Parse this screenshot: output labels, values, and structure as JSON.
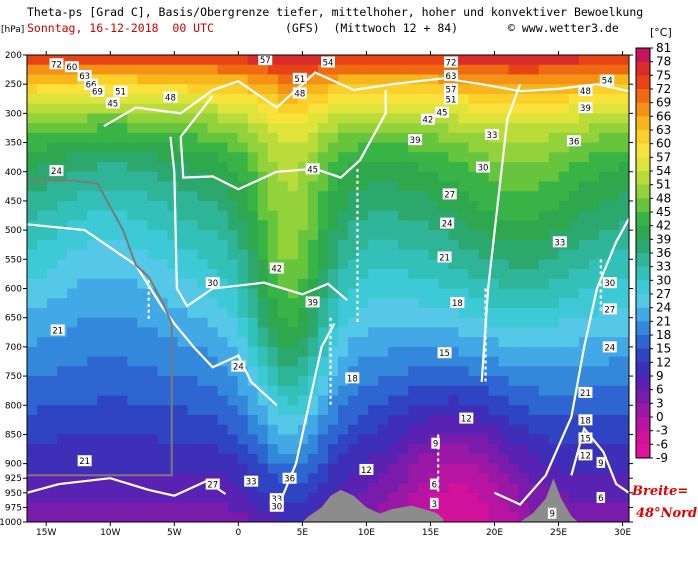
{
  "header": {
    "line1": "Theta-ps [Grad C], Basis/Obergrenze tiefer, mittelhoher, hoher und konvektiver Bewoelkung",
    "date": "Sonntag, 16-12-2018  00 UTC",
    "model": "(GFS)  (Mittwoch 12 + 84)",
    "site": "© www.wetter3.de",
    "unit_left": "[hPa]",
    "unit_right": "[°C]"
  },
  "note": {
    "line1": "Breite=",
    "line2": "48°Nord"
  },
  "colors": {
    "terrain": "#8c8c8c",
    "contour": "#000000",
    "cloud_outline": "#ffffff",
    "grey_line": "#7a7a7a"
  },
  "chart_data": {
    "type": "heatmap",
    "title": "Theta-ps [Grad C], Basis/Obergrenze tiefer, mittelhoher, hoher und konvektiver Bewoelkung",
    "x_ticks": [
      "15W",
      "10W",
      "5W",
      "0",
      "5E",
      "10E",
      "15E",
      "20E",
      "25E",
      "30E"
    ],
    "x_values": [
      -15,
      -10,
      -5,
      0,
      5,
      10,
      15,
      20,
      25,
      30
    ],
    "xlim": [
      -16.5,
      30.5
    ],
    "y_ticks": [
      200,
      250,
      300,
      350,
      400,
      450,
      500,
      550,
      600,
      650,
      700,
      750,
      800,
      850,
      900,
      925,
      950,
      975,
      1000
    ],
    "ylim": [
      200,
      1000
    ],
    "ylabel": "[hPa]",
    "colorbar": {
      "unit": "[°C]",
      "levels": [
        81,
        78,
        75,
        72,
        69,
        66,
        63,
        60,
        57,
        54,
        51,
        48,
        45,
        42,
        39,
        36,
        33,
        30,
        27,
        24,
        21,
        18,
        15,
        12,
        9,
        6,
        3,
        0,
        -3,
        -6,
        -9
      ],
      "colors": [
        "#c2155e",
        "#d92b2b",
        "#e84314",
        "#f06a12",
        "#f59216",
        "#f8b51c",
        "#fbd02a",
        "#f9e23b",
        "#dfe43a",
        "#b9dc3a",
        "#93d23a",
        "#67c53d",
        "#38b446",
        "#2ea74d",
        "#2ca86f",
        "#2fb497",
        "#33c0b8",
        "#3dc9d6",
        "#55c8e8",
        "#43a8e6",
        "#3388dc",
        "#2e65d0",
        "#2f44c2",
        "#3d2fb8",
        "#5a22b2",
        "#7a1cab",
        "#9a18a6",
        "#b814a2",
        "#d0129c",
        "#e0139a"
      ]
    },
    "contour_labels": [
      {
        "text": "57",
        "x": 2.1,
        "y": 208
      },
      {
        "text": "54",
        "x": 7.0,
        "y": 212
      },
      {
        "text": "51",
        "x": 4.8,
        "y": 240
      },
      {
        "text": "48",
        "x": 4.8,
        "y": 265
      },
      {
        "text": "48",
        "x": -5.3,
        "y": 272
      },
      {
        "text": "51",
        "x": -9.2,
        "y": 262
      },
      {
        "text": "45",
        "x": -9.8,
        "y": 282
      },
      {
        "text": "42",
        "x": 14.8,
        "y": 310
      },
      {
        "text": "45",
        "x": 15.9,
        "y": 298
      },
      {
        "text": "39",
        "x": 13.8,
        "y": 345
      },
      {
        "text": "45",
        "x": 5.8,
        "y": 395
      },
      {
        "text": "42",
        "x": 3.0,
        "y": 565
      },
      {
        "text": "39",
        "x": 5.8,
        "y": 623
      },
      {
        "text": "33",
        "x": 19.8,
        "y": 336
      },
      {
        "text": "36",
        "x": 26.2,
        "y": 347
      },
      {
        "text": "30",
        "x": 19.1,
        "y": 392
      },
      {
        "text": "27",
        "x": 16.5,
        "y": 438
      },
      {
        "text": "24",
        "x": 16.3,
        "y": 488
      },
      {
        "text": "21",
        "x": 16.1,
        "y": 546
      },
      {
        "text": "18",
        "x": 17.1,
        "y": 624
      },
      {
        "text": "15",
        "x": 16.1,
        "y": 710
      },
      {
        "text": "12",
        "x": 17.8,
        "y": 822
      },
      {
        "text": "9",
        "x": 15.4,
        "y": 865
      },
      {
        "text": "6",
        "x": 15.3,
        "y": 935
      },
      {
        "text": "3",
        "x": 15.3,
        "y": 968
      },
      {
        "text": "9",
        "x": 24.5,
        "y": 985
      },
      {
        "text": "12",
        "x": 10.0,
        "y": 910
      },
      {
        "text": "18",
        "x": 8.9,
        "y": 753
      },
      {
        "text": "24",
        "x": -14.2,
        "y": 398
      },
      {
        "text": "21",
        "x": -14.1,
        "y": 671
      },
      {
        "text": "21",
        "x": -12.0,
        "y": 895
      },
      {
        "text": "30",
        "x": -2.0,
        "y": 590
      },
      {
        "text": "24",
        "x": 0.0,
        "y": 733
      },
      {
        "text": "27",
        "x": -2.0,
        "y": 935
      },
      {
        "text": "33",
        "x": 1.0,
        "y": 930
      },
      {
        "text": "33",
        "x": 3.0,
        "y": 960
      },
      {
        "text": "30",
        "x": 3.0,
        "y": 973
      },
      {
        "text": "36",
        "x": 4.0,
        "y": 925
      },
      {
        "text": "33",
        "x": 25.1,
        "y": 520
      },
      {
        "text": "30",
        "x": 29.0,
        "y": 590
      },
      {
        "text": "27",
        "x": 29.0,
        "y": 635
      },
      {
        "text": "24",
        "x": 29.0,
        "y": 700
      },
      {
        "text": "21",
        "x": 27.1,
        "y": 778
      },
      {
        "text": "18",
        "x": 27.1,
        "y": 825
      },
      {
        "text": "15",
        "x": 27.1,
        "y": 856
      },
      {
        "text": "12",
        "x": 27.1,
        "y": 885
      },
      {
        "text": "9",
        "x": 28.3,
        "y": 898
      },
      {
        "text": "6",
        "x": 28.3,
        "y": 958
      },
      {
        "text": "54",
        "x": 28.8,
        "y": 243
      },
      {
        "text": "48",
        "x": 27.1,
        "y": 261
      },
      {
        "text": "39",
        "x": 27.1,
        "y": 290
      },
      {
        "text": "60",
        "x": -13.0,
        "y": 220
      },
      {
        "text": "63",
        "x": -12.0,
        "y": 235
      },
      {
        "text": "66",
        "x": -11.5,
        "y": 250
      },
      {
        "text": "69",
        "x": -11.0,
        "y": 262
      },
      {
        "text": "72",
        "x": -14.2,
        "y": 215
      },
      {
        "text": "72",
        "x": 16.6,
        "y": 212
      },
      {
        "text": "63",
        "x": 16.6,
        "y": 235
      },
      {
        "text": "57",
        "x": 16.6,
        "y": 258
      },
      {
        "text": "51",
        "x": 16.6,
        "y": 275
      }
    ]
  }
}
